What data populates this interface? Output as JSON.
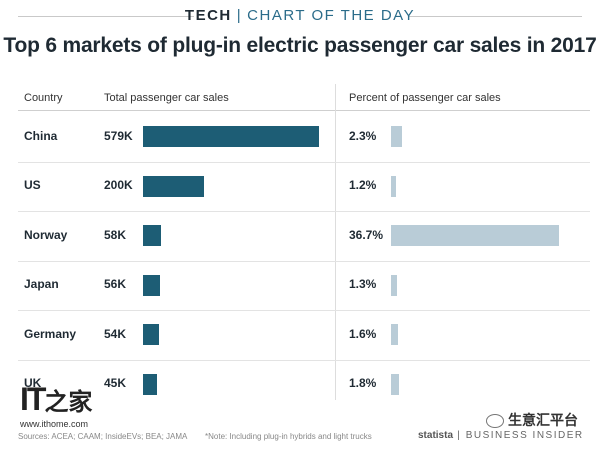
{
  "banner": {
    "left": "TECH",
    "right": "CHART OF THE DAY"
  },
  "chart_data": {
    "type": "table",
    "title": "Top 6 markets of plug-in electric passenger car sales in 2017",
    "columns": [
      "Country",
      "Total passenger car sales",
      "Percent of passenger car sales"
    ],
    "rows": [
      {
        "country": "China",
        "sales_label": "579K",
        "sales": 579,
        "pct_label": "2.3%",
        "pct": 2.3
      },
      {
        "country": "US",
        "sales_label": "200K",
        "sales": 200,
        "pct_label": "1.2%",
        "pct": 1.2
      },
      {
        "country": "Norway",
        "sales_label": "58K",
        "sales": 58,
        "pct_label": "36.7%",
        "pct": 36.7
      },
      {
        "country": "Japan",
        "sales_label": "56K",
        "sales": 56,
        "pct_label": "1.3%",
        "pct": 1.3
      },
      {
        "country": "Germany",
        "sales_label": "54K",
        "sales": 54,
        "pct_label": "1.6%",
        "pct": 1.6
      },
      {
        "country": "UK",
        "sales_label": "45K",
        "sales": 45,
        "pct_label": "1.8%",
        "pct": 1.8
      }
    ],
    "colors": {
      "sales_bar": "#1d5d75",
      "pct_bar": "#b9ccd7"
    }
  },
  "footer": {
    "sources": "Sources: ACEA; CAAM; InsideEVs; BEA; JAMA",
    "note": "*Note: Including plug-in hybrids and light trucks",
    "statista": "statista",
    "publisher": "BUSINESS INSIDER"
  },
  "watermark": {
    "logo_latin": "IT",
    "logo_cn": "之家",
    "url": "www.ithome.com",
    "wechat": "生意汇平台"
  }
}
